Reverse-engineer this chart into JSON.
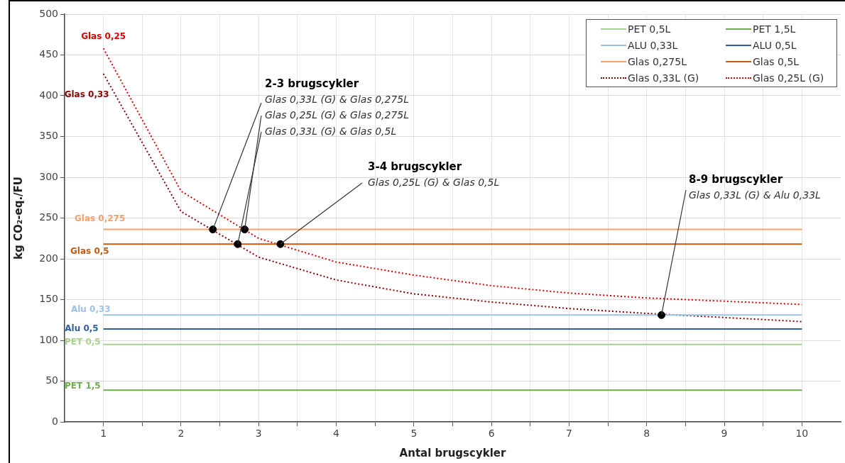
{
  "chart_data": {
    "type": "line",
    "xlabel": "Antal brugscykler",
    "ylabel": "kg CO₂-eq./FU",
    "xlim": [
      0.5,
      10.5
    ],
    "xticks": [
      1,
      {
        "value": 1.5,
        "label": null
      },
      2,
      {
        "value": 2.5,
        "label": null
      },
      3,
      {
        "value": 3.5,
        "label": null
      },
      4,
      {
        "value": 4.5,
        "label": null
      },
      5,
      {
        "value": 5.5,
        "label": null
      },
      6,
      {
        "value": 6.5,
        "label": null
      },
      7,
      {
        "value": 7.5,
        "label": null
      },
      8,
      {
        "value": 8.5,
        "label": null
      },
      9,
      {
        "value": 9.5,
        "label": null
      },
      10
    ],
    "ylim": [
      0,
      500
    ],
    "yticks": [
      0,
      50,
      100,
      150,
      200,
      250,
      300,
      350,
      400,
      450,
      500
    ],
    "grid": true,
    "legend": "top right",
    "marker": "none",
    "series": [
      {
        "name": "PET 0,5L",
        "color": "#a9d18e",
        "x": [
          1,
          10
        ],
        "values": [
          95,
          95
        ]
      },
      {
        "name": "PET 1,5L",
        "color": "#70ad47",
        "x": [
          1,
          10
        ],
        "values": [
          39,
          39
        ]
      },
      {
        "name": "ALU 0,33L",
        "color": "#9dc3e6",
        "x": [
          1,
          10
        ],
        "values": [
          131,
          131
        ]
      },
      {
        "name": "ALU 0,5L",
        "color": "#2e5f9e",
        "x": [
          1,
          10
        ],
        "values": [
          114,
          114
        ]
      },
      {
        "name": "Glas 0,275L",
        "color": "#f4a06b",
        "x": [
          1,
          10
        ],
        "values": [
          236,
          236
        ]
      },
      {
        "name": "Glas 0,5L",
        "color": "#c55a11",
        "x": [
          1,
          10
        ],
        "values": [
          218,
          218
        ]
      },
      {
        "name": "Glas 0,33L (G)",
        "color": "#8b0000",
        "line_style": "dotted",
        "x": [
          1,
          2,
          3,
          4,
          5,
          6,
          7,
          8,
          9,
          10
        ],
        "values": [
          427,
          258,
          202,
          174,
          157,
          147,
          139,
          133,
          128,
          123
        ]
      },
      {
        "name": "Glas 0,25L (G)",
        "color": "#e00000",
        "line_style": "dotted",
        "x": [
          1,
          2,
          3,
          4,
          5,
          6,
          7,
          8,
          9,
          10
        ],
        "values": [
          458,
          283,
          225,
          196,
          180,
          167,
          158,
          152,
          148,
          144
        ]
      },
      {
        "type": "scatter",
        "color": "#000000",
        "marker": "circle",
        "x": [
          2.41,
          2.73,
          2.82,
          3.28,
          8.19
        ],
        "values": [
          236,
          218,
          236,
          218,
          131
        ]
      }
    ],
    "annotations": [
      {
        "text": "Glas 0,25",
        "x": 1,
        "y": 458
      },
      {
        "text": "Glas 0,33",
        "x": 1,
        "y": 427
      },
      {
        "text": "Glas 0,275",
        "x": 1,
        "y": 236
      },
      {
        "text": "Glas 0,5",
        "x": 1,
        "y": 218
      },
      {
        "text": "Alu 0,33",
        "x": 1,
        "y": 131
      },
      {
        "text": "Alu 0,5",
        "x": 1,
        "y": 114
      },
      {
        "text": "PET 0,5",
        "x": 1,
        "y": 95
      },
      {
        "text": "PET 1,5",
        "x": 1,
        "y": 39
      },
      "2-3 brugscykler",
      {
        "text": "Glas 0,33L (G) & Glas 0,275L",
        "x": 2.41,
        "y": 236
      },
      {
        "text": "Glas 0,25L (G) & Glas 0,275L",
        "x": 2.82,
        "y": 236
      },
      {
        "text": "Glas 0,33L (G) & Glas 0,5L",
        "x": 2.73,
        "y": 218
      },
      "3-4 brugscykler",
      {
        "text": "Glas 0,25L (G) & Glas 0,5L",
        "x": 3.28,
        "y": 218
      },
      "8-9 brugscykler",
      {
        "text": "Glas 0,33L (G) & Alu 0,33L",
        "x": 8.19,
        "y": 131
      }
    ]
  }
}
